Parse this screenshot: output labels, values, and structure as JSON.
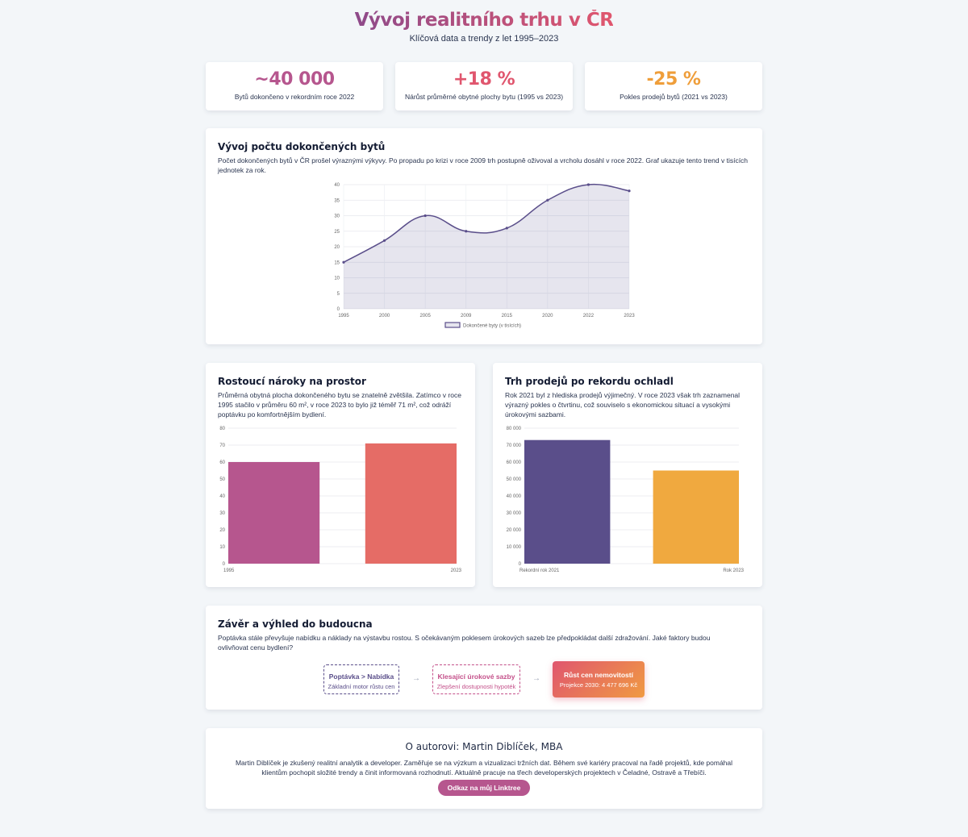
{
  "header": {
    "title": "Vývoj realitního trhu v ČR",
    "subtitle": "Klíčová data a trendy z let 1995–2023"
  },
  "stats": [
    {
      "value": "~40 000",
      "label": "Bytů dokončeno v rekordním roce 2022",
      "color": "#b6568e"
    },
    {
      "value": "+18 %",
      "label": "Nárůst průměrné obytné plochy bytu (1995 vs 2023)",
      "color": "#e0566e"
    },
    {
      "value": "-25 %",
      "label": "Pokles prodejů bytů (2021 vs 2023)",
      "color": "#ef9e3a"
    }
  ],
  "completions": {
    "title": "Vývoj počtu dokončených bytů",
    "description": "Počet dokončených bytů v ČR prošel výraznými výkyvy. Po propadu po krizi v roce 2009 trh postupně oživoval a vrcholu dosáhl v roce 2022. Graf ukazuje tento trend v tisících jednotek za rok."
  },
  "space": {
    "title": "Rostoucí nároky na prostor",
    "description": "Průměrná obytná plocha dokončeného bytu se znatelně zvětšila. Zatímco v roce 1995 stačilo v průměru 60 m², v roce 2023 to bylo již téměř 71 m², což odráží poptávku po komfortnějším bydlení."
  },
  "sales": {
    "title": "Trh prodejů po rekordu ochladl",
    "description": "Rok 2021 byl z hlediska prodejů výjimečný. V roce 2023 však trh zaznamenal výrazný pokles o čtvrtinu, což souviselo s ekonomickou situací a vysokými úrokovými sazbami."
  },
  "conclusion": {
    "title": "Závěr a výhled do budoucna",
    "description": "Poptávka stále převyšuje nabídku a náklady na výstavbu rostou. S očekávaným poklesem úrokových sazeb lze předpokládat další zdražování. Jaké faktory budou ovlivňovat cenu bydlení?",
    "steps": [
      {
        "title": "Poptávka > Nabídka",
        "sub": "Základní motor růstu cen"
      },
      {
        "title": "Klesající úrokové sazby",
        "sub": "Zlepšení dostupnosti hypoték"
      },
      {
        "title": "Růst cen nemovitostí",
        "sub": "Projekce 2030: 4 477 696 Kč"
      }
    ],
    "arrow": "→"
  },
  "author": {
    "title": "O autorovi: Martin Diblíček, MBA",
    "text": "Martin Diblíček je zkušený realitní analytik a developer. Zaměřuje se na výzkum a vizualizaci tržních dat. Během své kariéry pracoval na řadě projektů, kde pomáhal klientům pochopit složité trendy a činit informovaná rozhodnutí. Aktuálně pracuje na třech developerských projektech v Čeladné, Ostravě a Třebíči.",
    "button": "Odkaz na můj Linktree"
  },
  "chart_data": [
    {
      "type": "area",
      "x": [
        "1995",
        "2000",
        "2005",
        "2009",
        "2015",
        "2020",
        "2022",
        "2023"
      ],
      "series": [
        {
          "name": "Dokončené byty (v tisících)",
          "values": [
            15,
            22,
            30,
            25,
            26,
            35,
            40,
            38
          ],
          "color": "#5a4e8a"
        }
      ],
      "ylim": [
        0,
        40
      ],
      "yticks": [
        "0",
        "5",
        "10",
        "15",
        "20",
        "25",
        "30",
        "35",
        "40"
      ],
      "legend": "bottom",
      "grid": true
    },
    {
      "type": "bar",
      "categories": [
        "1995",
        "2023"
      ],
      "values": [
        60,
        71
      ],
      "colors": [
        "#b6568e",
        "#e56c66"
      ],
      "ylim": [
        0,
        80
      ],
      "yticks": [
        "0",
        "10",
        "20",
        "30",
        "40",
        "50",
        "60",
        "70",
        "80"
      ],
      "grid": true
    },
    {
      "type": "bar",
      "categories": [
        "Rekordní rok 2021",
        "Rok 2023"
      ],
      "values": [
        73000,
        55000
      ],
      "colors": [
        "#5a4e8a",
        "#f0a93f"
      ],
      "ylim": [
        0,
        80000
      ],
      "yticks": [
        "0",
        "10 000",
        "20 000",
        "30 000",
        "40 000",
        "50 000",
        "60 000",
        "70 000",
        "80 000"
      ],
      "grid": true
    }
  ]
}
